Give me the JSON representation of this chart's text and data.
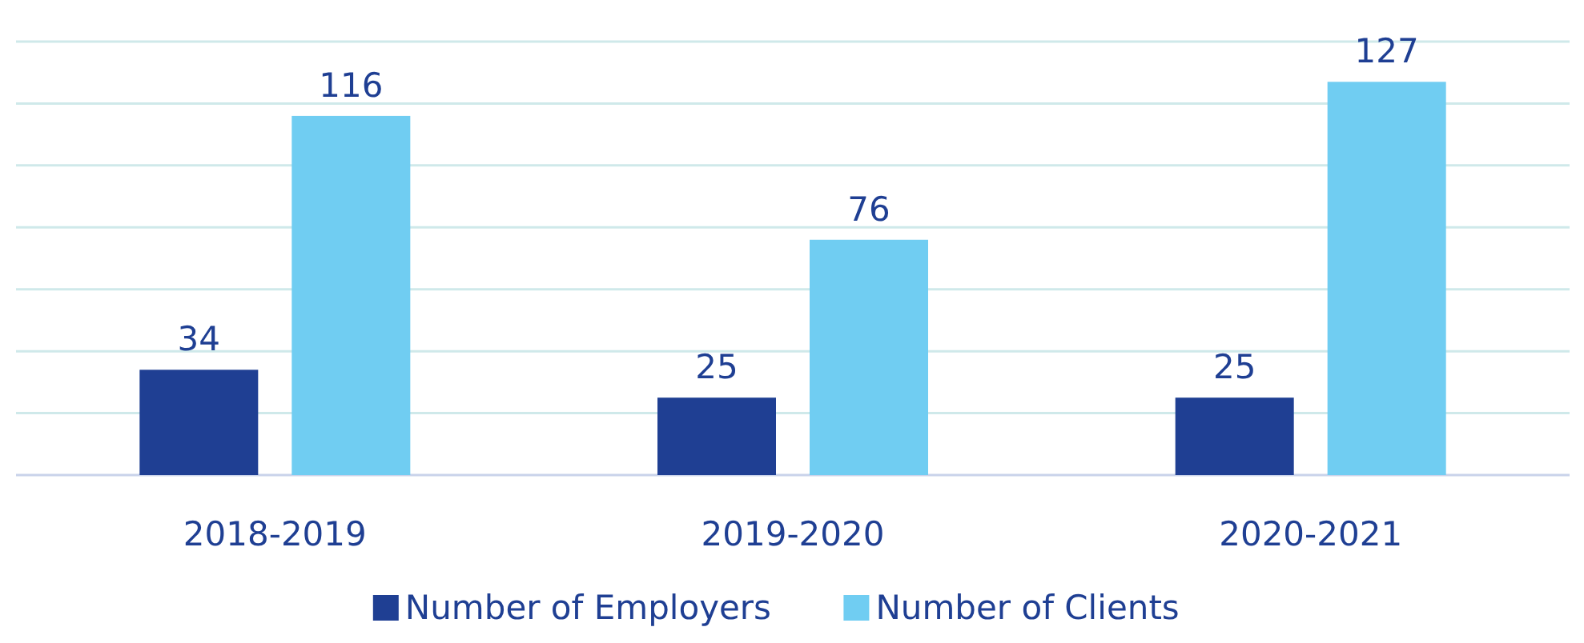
{
  "chart_data": {
    "type": "bar",
    "categories": [
      "2018-2019",
      "2019-2020",
      "2020-2021"
    ],
    "series": [
      {
        "name": "Number of Employers",
        "color": "#1f3f93",
        "values": [
          34,
          25,
          25
        ]
      },
      {
        "name": "Number of Clients",
        "color": "#70cdf2",
        "values": [
          116,
          76,
          127
        ]
      }
    ],
    "ylim": [
      0,
      140
    ],
    "yticks": [
      {
        "value": 0,
        "label": null
      },
      {
        "value": 20,
        "label": null
      },
      {
        "value": 40,
        "label": null
      },
      {
        "value": 60,
        "label": null
      },
      {
        "value": 80,
        "label": null
      },
      {
        "value": 100,
        "label": null
      },
      {
        "value": 120,
        "label": null
      },
      {
        "value": 140,
        "label": null
      }
    ],
    "tick_labels": "x",
    "grid": "y",
    "data_labels": true,
    "legend": "bottom"
  }
}
